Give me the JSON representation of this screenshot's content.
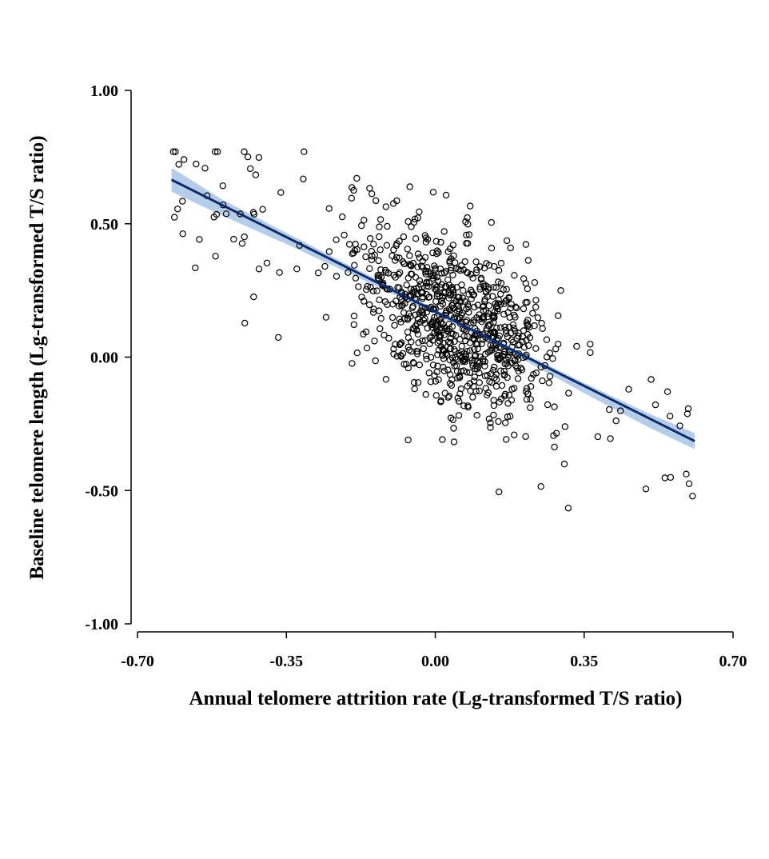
{
  "chart_data": {
    "type": "scatter",
    "title": "",
    "xlabel": "Annual telomere attrition rate (Lg-transformed T/S ratio)",
    "ylabel": "Baseline telomere length (Lg-transformed T/S ratio)",
    "xlim": [
      -0.7,
      0.7
    ],
    "ylim": [
      -1.0,
      1.0
    ],
    "x_ticks": [
      "-0.70",
      "-0.35",
      "0.00",
      "0.35",
      "0.70"
    ],
    "y_ticks": [
      "1.00",
      "0.50",
      "0.00",
      "-0.50",
      "-1.00"
    ],
    "grid": false,
    "legend": "none",
    "marker": "open-circle",
    "colors": {
      "points": "#000000",
      "fit_line": "#0d2c6b",
      "confidence_band": "#a9c4e6",
      "axes": "#000000"
    },
    "fit_line": {
      "x": [
        -0.62,
        0.61
      ],
      "y": [
        0.665,
        -0.315
      ]
    },
    "confidence_band": {
      "x": [
        -0.62,
        -0.5,
        -0.35,
        -0.2,
        -0.05,
        0.05,
        0.2,
        0.35,
        0.5,
        0.61
      ],
      "upper": [
        0.71,
        0.59,
        0.466,
        0.342,
        0.22,
        0.14,
        0.021,
        -0.097,
        -0.21,
        -0.285
      ],
      "lower": [
        0.62,
        0.53,
        0.424,
        0.312,
        0.198,
        0.12,
        -0.003,
        -0.135,
        -0.262,
        -0.345
      ]
    }
  }
}
